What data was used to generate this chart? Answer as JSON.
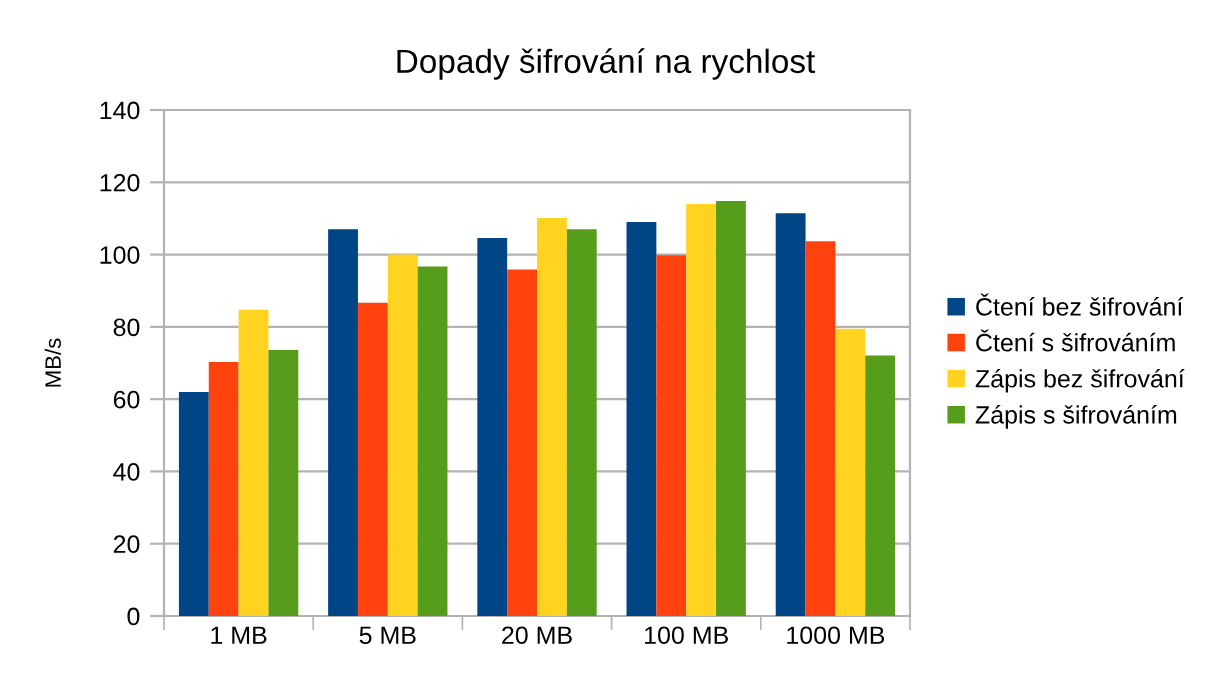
{
  "chart_data": {
    "type": "bar",
    "title": "Dopady šifrování na rychlost",
    "ylabel": "MB/s",
    "categories": [
      "1 MB",
      "5 MB",
      "20 MB",
      "100 MB",
      "1000 MB"
    ],
    "series": [
      {
        "name": "Čtení bez šifrování",
        "color": "#004586",
        "values": [
          62,
          107,
          104.6,
          109,
          111.4
        ]
      },
      {
        "name": "Čtení s šifrováním",
        "color": "#ff420e",
        "values": [
          70.3,
          86.7,
          95.9,
          99.8,
          103.7
        ]
      },
      {
        "name": "Zápis bez šifrování",
        "color": "#ffd320",
        "values": [
          84.7,
          100,
          110.1,
          114,
          79.5
        ]
      },
      {
        "name": "Zápis s šifrováním",
        "color": "#579d1c",
        "values": [
          73.6,
          96.7,
          107,
          114.8,
          72.1
        ]
      }
    ],
    "ylim": [
      0,
      140
    ],
    "yticks": [
      0,
      20,
      40,
      60,
      80,
      100,
      120,
      140
    ],
    "grid": "y",
    "legend": "right"
  }
}
